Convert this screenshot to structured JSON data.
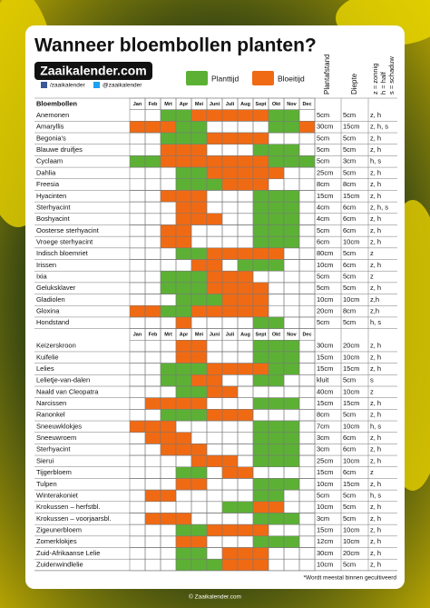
{
  "header": {
    "title": "Wanneer bloembollen planten?",
    "logo": "Zaaikalender.com",
    "facebook": "/zaaikalender",
    "twitter": "@zaaikalender"
  },
  "legend": [
    {
      "name": "Planttijd",
      "color": "#5cb135"
    },
    {
      "name": "Bloeitijd",
      "color": "#f06a14"
    }
  ],
  "table": {
    "name_header": "Bloembollen",
    "months": [
      "Jan",
      "Feb",
      "Mrt",
      "Apr",
      "Mei",
      "Juni",
      "Juli",
      "Aug",
      "Sept",
      "Okt",
      "Nov",
      "Dec"
    ],
    "column_headers": [
      "Plantafstand",
      "Diepte"
    ],
    "light_legend": [
      "z = zonnig",
      "h = half",
      "s = schaduw"
    ],
    "sections": [
      {
        "rows": [
          {
            "name": "Anemonen",
            "cells": [
              null,
              null,
              0,
              0,
              1,
              1,
              1,
              1,
              1,
              0,
              0,
              null
            ],
            "spacing": "5cm",
            "depth": "5cm",
            "light": "z, h"
          },
          {
            "name": "Amaryllis",
            "cells": [
              1,
              1,
              1,
              0,
              0,
              null,
              null,
              null,
              null,
              0,
              0,
              1
            ],
            "spacing": "30cm",
            "depth": "15cm",
            "light": "z, h, s"
          },
          {
            "name": "Begonia's",
            "cells": [
              null,
              null,
              0,
              0,
              0,
              1,
              1,
              1,
              1,
              null,
              null,
              null
            ],
            "spacing": "5cm",
            "depth": "5cm",
            "light": "z, h"
          },
          {
            "name": "Blauwe druifjes",
            "cells": [
              null,
              null,
              1,
              1,
              1,
              null,
              null,
              null,
              0,
              0,
              0,
              null
            ],
            "spacing": "5cm",
            "depth": "5cm",
            "light": "z, h"
          },
          {
            "name": "Cyclaam",
            "cells": [
              0,
              0,
              1,
              1,
              1,
              1,
              1,
              1,
              1,
              0,
              0,
              0
            ],
            "spacing": "5cm",
            "depth": "3cm",
            "light": "h, s"
          },
          {
            "name": "Dahlia",
            "cells": [
              null,
              null,
              null,
              0,
              0,
              1,
              1,
              1,
              1,
              1,
              null,
              null
            ],
            "spacing": "25cm",
            "depth": "5cm",
            "light": "z, h"
          },
          {
            "name": "Freesia",
            "cells": [
              null,
              null,
              null,
              0,
              0,
              0,
              1,
              1,
              1,
              null,
              null,
              null
            ],
            "spacing": "8cm",
            "depth": "8cm",
            "light": "z, h"
          },
          {
            "name": "Hyacinten",
            "cells": [
              null,
              null,
              1,
              1,
              1,
              null,
              null,
              null,
              0,
              0,
              0,
              null
            ],
            "spacing": "15cm",
            "depth": "15cm",
            "light": "z, h"
          },
          {
            "name": "Sterhyacint",
            "cells": [
              null,
              null,
              null,
              1,
              1,
              null,
              null,
              null,
              0,
              0,
              0,
              null
            ],
            "spacing": "4cm",
            "depth": "6cm",
            "light": "z, h, s"
          },
          {
            "name": "Boshyacint",
            "cells": [
              null,
              null,
              null,
              1,
              1,
              1,
              null,
              null,
              0,
              0,
              0,
              null
            ],
            "spacing": "4cm",
            "depth": "6cm",
            "light": "z, h"
          },
          {
            "name": "Oosterse sterhyacint",
            "cells": [
              null,
              null,
              1,
              1,
              null,
              null,
              null,
              null,
              0,
              0,
              0,
              null
            ],
            "spacing": "5cm",
            "depth": "6cm",
            "light": "z, h"
          },
          {
            "name": "Vroege sterhyacint",
            "cells": [
              null,
              null,
              1,
              1,
              null,
              null,
              null,
              null,
              0,
              0,
              0,
              null
            ],
            "spacing": "6cm",
            "depth": "10cm",
            "light": "z, h"
          },
          {
            "name": "Indisch bloemriet",
            "cells": [
              null,
              null,
              null,
              0,
              0,
              1,
              1,
              1,
              1,
              1,
              null,
              null
            ],
            "spacing": "80cm",
            "depth": "5cm",
            "light": "z"
          },
          {
            "name": "Irissen",
            "cells": [
              null,
              null,
              null,
              null,
              1,
              1,
              null,
              0,
              0,
              0,
              null,
              null
            ],
            "spacing": "10cm",
            "depth": "6cm",
            "light": "z, h"
          },
          {
            "name": "Ixia",
            "cells": [
              null,
              null,
              0,
              0,
              0,
              1,
              1,
              1,
              null,
              null,
              null,
              null
            ],
            "spacing": "5cm",
            "depth": "5cm",
            "light": "z"
          },
          {
            "name": "Geluksklaver",
            "cells": [
              null,
              null,
              0,
              0,
              0,
              1,
              1,
              1,
              1,
              null,
              null,
              null
            ],
            "spacing": "5cm",
            "depth": "5cm",
            "light": "z, h"
          },
          {
            "name": "Gladiolen",
            "cells": [
              null,
              null,
              null,
              0,
              0,
              0,
              1,
              1,
              1,
              null,
              null,
              null
            ],
            "spacing": "10cm",
            "depth": "10cm",
            "light": "z,h"
          },
          {
            "name": "Gloxina",
            "cells": [
              1,
              1,
              0,
              0,
              1,
              1,
              1,
              1,
              1,
              null,
              null,
              null
            ],
            "spacing": "20cm",
            "depth": "8cm",
            "light": "z,h"
          },
          {
            "name": "Hondstand",
            "cells": [
              null,
              null,
              null,
              1,
              null,
              null,
              null,
              null,
              0,
              0,
              null,
              null
            ],
            "spacing": "5cm",
            "depth": "5cm",
            "light": "h, s"
          }
        ]
      },
      {
        "rows": [
          {
            "name": "Keizerskroon",
            "cells": [
              null,
              null,
              null,
              1,
              1,
              null,
              null,
              null,
              0,
              0,
              0,
              null
            ],
            "spacing": "30cm",
            "depth": "20cm",
            "light": "z, h"
          },
          {
            "name": "Kuifelie",
            "cells": [
              null,
              null,
              null,
              1,
              1,
              null,
              null,
              null,
              0,
              0,
              0,
              null
            ],
            "spacing": "15cm",
            "depth": "10cm",
            "light": "z, h"
          },
          {
            "name": "Lelies",
            "cells": [
              null,
              null,
              0,
              0,
              0,
              1,
              1,
              1,
              1,
              0,
              0,
              null
            ],
            "spacing": "15cm",
            "depth": "15cm",
            "light": "z, h"
          },
          {
            "name": "Lelietje-van-dalen",
            "cells": [
              null,
              null,
              0,
              0,
              1,
              1,
              null,
              null,
              0,
              0,
              null,
              null
            ],
            "spacing": "kluit",
            "depth": "5cm",
            "light": "s"
          },
          {
            "name": "Naald van Cleopatra",
            "cells": [
              null,
              null,
              null,
              0,
              0,
              1,
              1,
              null,
              null,
              null,
              null,
              null
            ],
            "spacing": "40cm",
            "depth": "10cm",
            "light": "z"
          },
          {
            "name": "Narcissen",
            "cells": [
              null,
              1,
              1,
              1,
              1,
              null,
              null,
              null,
              0,
              0,
              0,
              null
            ],
            "spacing": "15cm",
            "depth": "15cm",
            "light": "z, h"
          },
          {
            "name": "Ranonkel",
            "cells": [
              null,
              null,
              0,
              0,
              0,
              1,
              1,
              1,
              null,
              null,
              null,
              null
            ],
            "spacing": "8cm",
            "depth": "5cm",
            "light": "z, h"
          },
          {
            "name": "Sneeuwklokjes",
            "cells": [
              1,
              1,
              1,
              null,
              null,
              null,
              null,
              null,
              0,
              0,
              0,
              null
            ],
            "spacing": "7cm",
            "depth": "10cm",
            "light": "h, s"
          },
          {
            "name": "Sneeuwroem",
            "cells": [
              null,
              1,
              1,
              1,
              null,
              null,
              null,
              null,
              0,
              0,
              0,
              null
            ],
            "spacing": "3cm",
            "depth": "6cm",
            "light": "z, h"
          },
          {
            "name": "Sterhyacint",
            "cells": [
              null,
              null,
              1,
              1,
              1,
              null,
              null,
              null,
              0,
              0,
              0,
              null
            ],
            "spacing": "3cm",
            "depth": "6cm",
            "light": "z, h"
          },
          {
            "name": "Sierui",
            "cells": [
              null,
              null,
              null,
              null,
              1,
              1,
              1,
              null,
              0,
              0,
              0,
              null
            ],
            "spacing": "25cm",
            "depth": "10cm",
            "light": "z, h"
          },
          {
            "name": "Tijgerbloem",
            "cells": [
              null,
              null,
              null,
              0,
              0,
              null,
              1,
              1,
              null,
              null,
              null,
              null
            ],
            "spacing": "15cm",
            "depth": "6cm",
            "light": "z"
          },
          {
            "name": "Tulpen",
            "cells": [
              null,
              null,
              null,
              1,
              1,
              null,
              null,
              null,
              0,
              0,
              0,
              null
            ],
            "spacing": "10cm",
            "depth": "15cm",
            "light": "z, h"
          },
          {
            "name": "Winterakoniet",
            "cells": [
              null,
              1,
              1,
              null,
              null,
              null,
              null,
              null,
              0,
              0,
              null,
              null
            ],
            "spacing": "5cm",
            "depth": "5cm",
            "light": "h, s"
          },
          {
            "name": "Krokussen – herfstbl.",
            "cells": [
              null,
              null,
              null,
              null,
              null,
              null,
              0,
              0,
              1,
              1,
              null,
              null
            ],
            "spacing": "10cm",
            "depth": "5cm",
            "light": "z, h"
          },
          {
            "name": "Krokussen – voorjaarsbl.",
            "cells": [
              null,
              1,
              1,
              1,
              null,
              null,
              null,
              null,
              0,
              0,
              0,
              null
            ],
            "spacing": "3cm",
            "depth": "5cm",
            "light": "z, h"
          },
          {
            "name": "Zigeunerbloem",
            "cells": [
              null,
              null,
              null,
              0,
              0,
              1,
              1,
              1,
              1,
              null,
              null,
              null
            ],
            "spacing": "15cm",
            "depth": "10cm",
            "light": "z, h"
          },
          {
            "name": "Zomerklokjes",
            "cells": [
              null,
              null,
              null,
              1,
              1,
              null,
              null,
              null,
              0,
              0,
              0,
              null
            ],
            "spacing": "12cm",
            "depth": "10cm",
            "light": "z, h"
          },
          {
            "name": "Zuid-Afrikaanse Lelie",
            "cells": [
              null,
              null,
              null,
              0,
              0,
              null,
              1,
              1,
              1,
              null,
              null,
              null
            ],
            "spacing": "30cm",
            "depth": "20cm",
            "light": "z, h"
          },
          {
            "name": "Zuidenwindlelie",
            "cells": [
              null,
              null,
              null,
              0,
              0,
              0,
              1,
              1,
              1,
              null,
              null,
              null
            ],
            "spacing": "10cm",
            "depth": "5cm",
            "light": "z, h"
          }
        ]
      }
    ]
  },
  "footnote": "*Wordt meestal binnen gecultiveerd",
  "footer": "© Zaaikalender.com"
}
